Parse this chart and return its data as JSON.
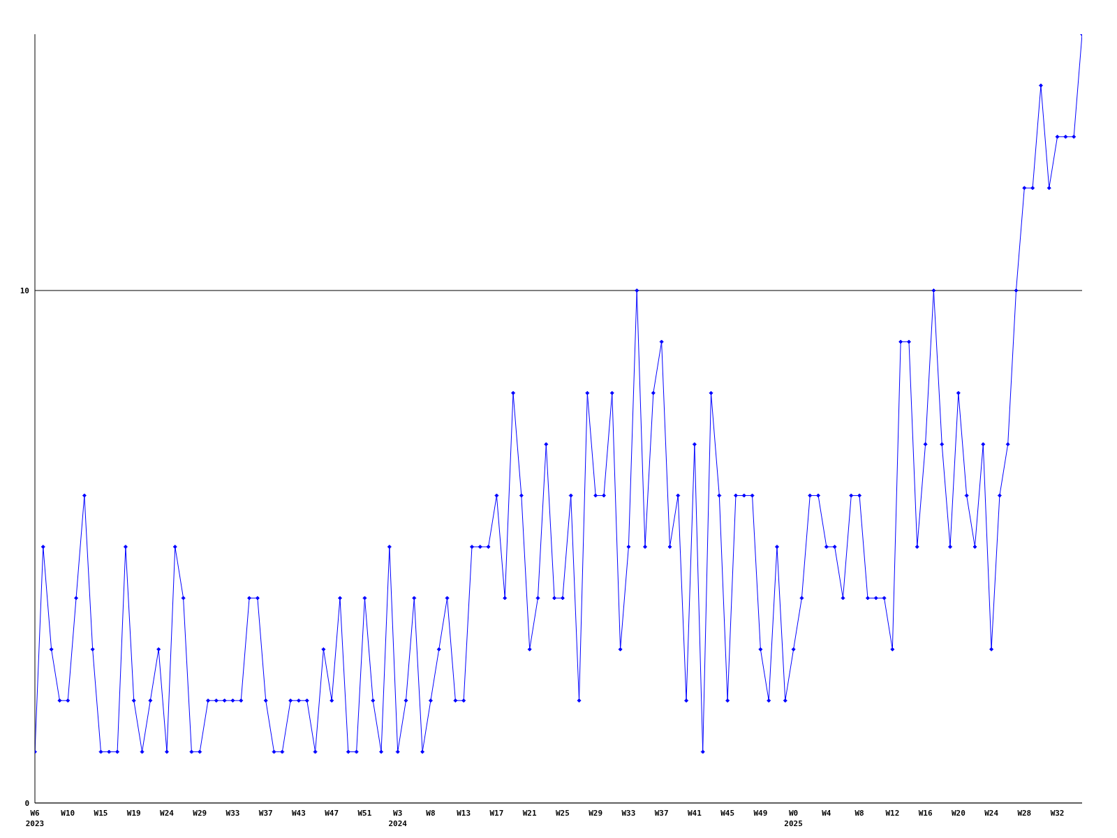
{
  "chart_data": {
    "type": "line",
    "categories": [
      "W6\n2023",
      null,
      null,
      null,
      "W10",
      null,
      null,
      null,
      "W15",
      null,
      null,
      null,
      "W19",
      null,
      null,
      null,
      "W24",
      null,
      null,
      null,
      "W29",
      null,
      null,
      null,
      "W33",
      null,
      null,
      null,
      "W37",
      null,
      null,
      null,
      "W43",
      null,
      null,
      null,
      "W47",
      null,
      null,
      null,
      "W51",
      null,
      null,
      null,
      "W3\n2024",
      null,
      null,
      null,
      "W8",
      null,
      null,
      null,
      "W13",
      null,
      null,
      null,
      "W17",
      null,
      null,
      null,
      "W21",
      null,
      null,
      null,
      "W25",
      null,
      null,
      null,
      "W29",
      null,
      null,
      null,
      "W33",
      null,
      null,
      null,
      "W37",
      null,
      null,
      null,
      "W41",
      null,
      null,
      null,
      "W45",
      null,
      null,
      null,
      "W49",
      null,
      null,
      null,
      "W0\n2025",
      null,
      null,
      null,
      "W4",
      null,
      null,
      null,
      "W8",
      null,
      null,
      null,
      "W12",
      null,
      null,
      null,
      "W16",
      null,
      null,
      null,
      "W20",
      null,
      null,
      null,
      "W24",
      null,
      null,
      null,
      "W28",
      null,
      null,
      null,
      "W32",
      null,
      null,
      null
    ],
    "series": [
      {
        "color": "#0000ff",
        "values": [
          1,
          5,
          3,
          2,
          2,
          4,
          6,
          3,
          1,
          1,
          1,
          5,
          2,
          1,
          2,
          3,
          1,
          5,
          4,
          1,
          1,
          2,
          2,
          2,
          2,
          2,
          4,
          4,
          2,
          1,
          1,
          2,
          2,
          2,
          1,
          3,
          2,
          4,
          1,
          1,
          4,
          2,
          1,
          5,
          1,
          2,
          4,
          1,
          2,
          3,
          4,
          2,
          2,
          5,
          5,
          5,
          6,
          4,
          8,
          6,
          3,
          4,
          7,
          4,
          4,
          6,
          2,
          8,
          6,
          6,
          8,
          3,
          5,
          10,
          5,
          8,
          9,
          5,
          6,
          2,
          7,
          1,
          8,
          6,
          2,
          6,
          6,
          6,
          3,
          2,
          5,
          2,
          3,
          4,
          6,
          6,
          5,
          5,
          4,
          6,
          6,
          4,
          4,
          4,
          3,
          9,
          9,
          5,
          7,
          10,
          7,
          5,
          8,
          6,
          5,
          7,
          3,
          6,
          7,
          10,
          12,
          12,
          14,
          12,
          13,
          13,
          13,
          15
        ]
      }
    ],
    "ylim": [
      0,
      15
    ],
    "yticks": [
      0,
      10
    ],
    "grid": "y",
    "marker": "diamond",
    "line_style": "solid"
  }
}
